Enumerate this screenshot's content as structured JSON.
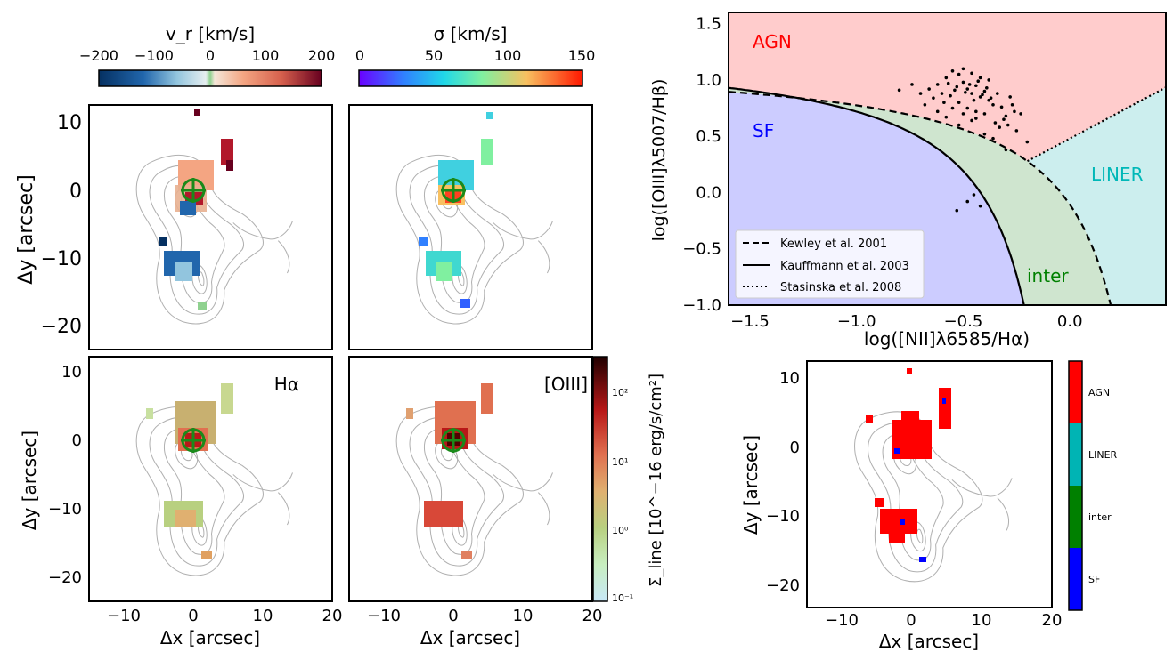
{
  "chart_data": [
    {
      "type": "heatmap",
      "panel": "vr",
      "colorbar": {
        "title": "v_r [km/s]",
        "ticks": [
          "−200",
          "−100",
          "0",
          "100",
          "200"
        ],
        "range": [
          -200,
          200
        ]
      },
      "xlabel": "",
      "ylabel": "Δy [arcsec]",
      "xlim": [
        -15,
        20
      ],
      "ylim": [
        -23,
        13
      ],
      "yticks": [
        "10",
        "0",
        "−10",
        "−20"
      ],
      "nucleus": [
        0,
        0
      ]
    },
    {
      "type": "heatmap",
      "panel": "sigma",
      "colorbar": {
        "title": "σ [km/s]",
        "ticks": [
          "0",
          "50",
          "100",
          "150"
        ],
        "range": [
          0,
          150
        ]
      },
      "xlim": [
        -15,
        20
      ],
      "ylim": [
        -23,
        13
      ],
      "nucleus": [
        0,
        0
      ]
    },
    {
      "type": "heatmap",
      "panel": "Halpha flux",
      "label": "Hα",
      "xlabel": "Δx [arcsec]",
      "ylabel": "Δy [arcsec]",
      "xlim": [
        -15,
        20
      ],
      "ylim": [
        -23,
        13
      ],
      "xticks": [
        "−10",
        "0",
        "10",
        "20"
      ],
      "yticks": [
        "10",
        "0",
        "−10",
        "−20"
      ]
    },
    {
      "type": "heatmap",
      "panel": "OIII flux",
      "label": "[OIII]",
      "xlabel": "Δx [arcsec]",
      "xlim": [
        -15,
        20
      ],
      "ylim": [
        -23,
        13
      ],
      "xticks": [
        "−10",
        "0",
        "10",
        "20"
      ],
      "colorbar": {
        "title": "Σ_line [10^−16 erg/s/cm²]",
        "scale": "log",
        "ticks": [
          "10²",
          "10¹",
          "10⁰",
          "10⁻¹"
        ],
        "range": [
          0.1,
          300
        ]
      }
    },
    {
      "type": "scatter",
      "panel": "BPT",
      "xlabel": "log([NII]λ6585/Hα)",
      "ylabel": "log([OIII]λ5007/Hβ)",
      "xlim": [
        -1.6,
        0.45
      ],
      "ylim": [
        -1.0,
        1.6
      ],
      "xticks": [
        "−1.5",
        "−1.0",
        "−0.5",
        "0.0"
      ],
      "yticks": [
        "1.5",
        "1.0",
        "0.5",
        "0.0",
        "−0.5",
        "−1.0"
      ],
      "regions": [
        {
          "name": "AGN",
          "color": "#ff0000"
        },
        {
          "name": "SF",
          "color": "#0000ff"
        },
        {
          "name": "LINER",
          "color": "#00b8b8"
        },
        {
          "name": "inter",
          "color": "#008000"
        }
      ],
      "legend": {
        "position": "bottom-left",
        "entries": [
          "Kewley et al. 2001",
          "Kauffmann et al. 2003",
          "Stasinska et al. 2008"
        ]
      },
      "points": [
        [
          -0.62,
          0.96
        ],
        [
          -0.58,
          1.02
        ],
        [
          -0.55,
          1.08
        ],
        [
          -0.52,
          1.05
        ],
        [
          -0.5,
          0.98
        ],
        [
          -0.48,
          0.92
        ],
        [
          -0.46,
          0.88
        ],
        [
          -0.44,
          0.95
        ],
        [
          -0.42,
          0.85
        ],
        [
          -0.4,
          0.9
        ],
        [
          -0.38,
          0.82
        ],
        [
          -0.36,
          0.78
        ],
        [
          -0.54,
          0.91
        ],
        [
          -0.56,
          0.86
        ],
        [
          -0.6,
          0.88
        ],
        [
          -0.64,
          0.84
        ],
        [
          -0.66,
          0.92
        ],
        [
          -0.52,
          0.8
        ],
        [
          -0.48,
          0.75
        ],
        [
          -0.44,
          0.72
        ],
        [
          -0.4,
          0.7
        ],
        [
          -0.34,
          0.88
        ],
        [
          -0.32,
          0.76
        ],
        [
          -0.3,
          0.68
        ],
        [
          -0.28,
          0.85
        ],
        [
          -0.26,
          0.72
        ],
        [
          -0.5,
          1.1
        ],
        [
          -0.46,
          1.06
        ],
        [
          -0.42,
          1.02
        ],
        [
          -0.38,
          1.0
        ],
        [
          -0.45,
          0.82
        ],
        [
          -0.47,
          0.96
        ],
        [
          -0.43,
          0.99
        ],
        [
          -0.41,
          0.87
        ],
        [
          -0.39,
          0.93
        ],
        [
          -0.37,
          0.84
        ],
        [
          -0.57,
          0.97
        ],
        [
          -0.53,
          0.94
        ],
        [
          -0.49,
          0.89
        ],
        [
          -0.59,
          0.8
        ],
        [
          -0.62,
          0.72
        ],
        [
          -0.68,
          0.78
        ],
        [
          -0.7,
          0.88
        ],
        [
          -0.8,
          0.91
        ],
        [
          -0.74,
          0.96
        ],
        [
          -0.35,
          0.62
        ],
        [
          -0.33,
          0.58
        ],
        [
          -0.29,
          0.6
        ],
        [
          -0.25,
          0.55
        ],
        [
          -0.31,
          0.65
        ],
        [
          -0.27,
          0.78
        ],
        [
          -0.23,
          0.7
        ],
        [
          -0.44,
          0.66
        ],
        [
          -0.5,
          0.7
        ],
        [
          -0.55,
          0.75
        ],
        [
          -0.58,
          0.67
        ],
        [
          -0.52,
          0.6
        ],
        [
          -0.46,
          0.64
        ],
        [
          -0.36,
          0.48
        ],
        [
          -0.4,
          0.52
        ],
        [
          -0.2,
          0.45
        ],
        [
          -0.3,
          0.38
        ],
        [
          -0.45,
          -0.02
        ],
        [
          -0.48,
          -0.08
        ],
        [
          -0.42,
          -0.12
        ],
        [
          -0.53,
          -0.16
        ]
      ]
    },
    {
      "type": "heatmap",
      "panel": "BPT map",
      "xlabel": "Δx [arcsec]",
      "ylabel": "Δy [arcsec]",
      "xlim": [
        -15,
        20
      ],
      "ylim": [
        -23,
        13
      ],
      "xticks": [
        "−10",
        "0",
        "10",
        "20"
      ],
      "yticks": [
        "10",
        "0",
        "−10",
        "−20"
      ],
      "colorbar": {
        "categories": [
          "AGN",
          "LINER",
          "inter",
          "SF"
        ],
        "colors": [
          "#ff0000",
          "#00b4b4",
          "#008000",
          "#0000ff"
        ]
      }
    }
  ]
}
